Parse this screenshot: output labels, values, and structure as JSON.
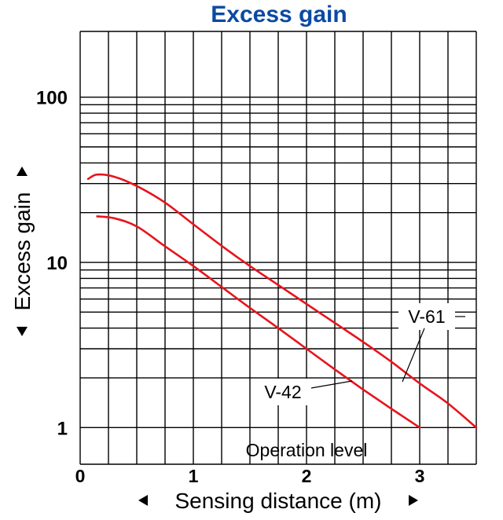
{
  "colors": {
    "title": "#0a4aa2",
    "grid": "#000000",
    "series": "#e8141c",
    "text": "#000000"
  },
  "chart_data": {
    "type": "line",
    "title": "Excess gain",
    "xlabel": "Sensing distance (m)",
    "ylabel": "Excess gain",
    "x_scale": "linear",
    "y_scale": "log",
    "xlim": [
      0,
      3.5
    ],
    "ylim": [
      0.6,
      250
    ],
    "grid": true,
    "x_ticks": [
      0,
      1,
      2,
      3
    ],
    "x_tick_labels": [
      "0",
      "1",
      "2",
      "3"
    ],
    "x_grid_step": 0.25,
    "y_ticks": [
      1,
      10,
      100
    ],
    "y_tick_labels": [
      "1",
      "10",
      "100"
    ],
    "y_grid_values": [
      0.6,
      1,
      2,
      3,
      4,
      5,
      6,
      7,
      8,
      9,
      10,
      20,
      30,
      40,
      50,
      60,
      70,
      80,
      90,
      100,
      250
    ],
    "series": [
      {
        "name": "V-61",
        "x": [
          0.07,
          0.15,
          0.3,
          0.5,
          0.75,
          1.0,
          1.25,
          1.5,
          1.75,
          2.0,
          2.25,
          2.5,
          2.75,
          3.0,
          3.25,
          3.5
        ],
        "y": [
          32,
          34,
          33,
          29,
          23,
          17,
          12.6,
          9.5,
          7.3,
          5.6,
          4.3,
          3.3,
          2.5,
          1.85,
          1.4,
          1.0
        ]
      },
      {
        "name": "V-42",
        "x": [
          0.15,
          0.3,
          0.5,
          0.75,
          1.0,
          1.25,
          1.5,
          1.75,
          2.0,
          2.25,
          2.5,
          2.75,
          3.0
        ],
        "y": [
          19,
          18.5,
          16.5,
          12.5,
          9.5,
          7.1,
          5.3,
          4.0,
          3.0,
          2.25,
          1.7,
          1.3,
          1.0
        ]
      }
    ],
    "annotations": [
      {
        "text": "V-61",
        "series": "V-61"
      },
      {
        "text": "V-42",
        "series": "V-42"
      },
      {
        "text": "Operation level",
        "y": 1
      }
    ]
  }
}
